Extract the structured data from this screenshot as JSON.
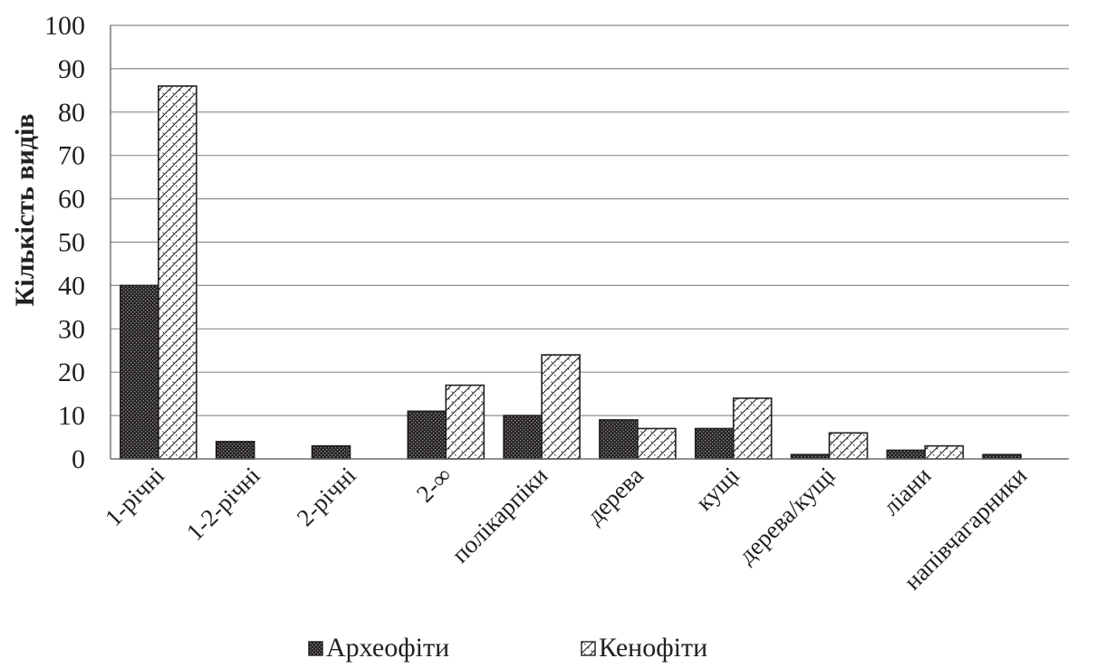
{
  "chart_data": {
    "type": "bar",
    "categories": [
      "1-річні",
      "1-2-річні",
      "2-річні",
      "2-∞",
      "полікарпіки",
      "дерева",
      "кущі",
      "дерева/кущі",
      "ліани",
      "напівчагарники"
    ],
    "series": [
      {
        "name": "Археофіти",
        "values": [
          40,
          4,
          3,
          11,
          10,
          9,
          7,
          1,
          2,
          1
        ],
        "color": "#231f20",
        "pattern": "dark-checker"
      },
      {
        "name": "Кенофіти",
        "values": [
          86,
          0,
          0,
          17,
          24,
          7,
          14,
          6,
          3,
          0
        ],
        "color": "#231f20",
        "pattern": "diagonal-hatch"
      }
    ],
    "title": "",
    "xlabel": "",
    "ylabel": "Кількість видів",
    "ylim": [
      0,
      100
    ],
    "yticks": [
      0,
      10,
      20,
      30,
      40,
      50,
      60,
      70,
      80,
      90,
      100
    ],
    "grid": true,
    "legend": "bottom"
  }
}
